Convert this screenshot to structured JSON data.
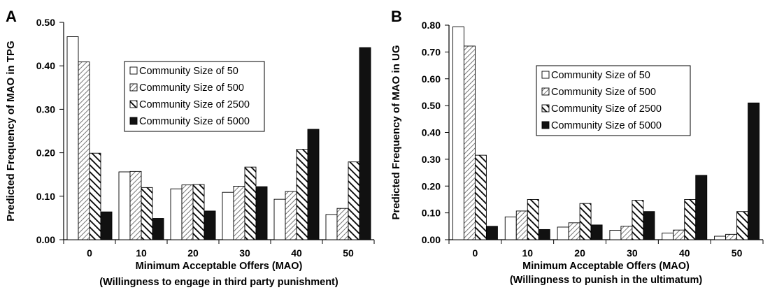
{
  "colors": {
    "axis": "#000000",
    "bar_stroke": "#000000",
    "fill_50": "#ffffff",
    "fill_5000": "#111111",
    "legend_border": "#000000"
  },
  "chart_data": [
    {
      "type": "bar",
      "panel_label": "A",
      "title": "",
      "ylabel": "Predicted Frequency of MAO in TPG",
      "xlabel": "Minimum Acceptable Offers (MAO)",
      "xlabel2": "(Willingness to engage in third party punishment)",
      "ylim": [
        0,
        0.5
      ],
      "yticks": [
        "0.00",
        "0.10",
        "0.20",
        "0.30",
        "0.40",
        "0.50"
      ],
      "categories": [
        "0",
        "10",
        "20",
        "30",
        "40",
        "50"
      ],
      "grid": false,
      "legend_position": "upper-center",
      "series": [
        {
          "name": "Community Size of 50",
          "pattern": "white",
          "values": [
            0.467,
            0.156,
            0.117,
            0.109,
            0.093,
            0.058
          ]
        },
        {
          "name": "Community Size of 500",
          "pattern": "hatch-light",
          "values": [
            0.409,
            0.157,
            0.126,
            0.123,
            0.111,
            0.072
          ]
        },
        {
          "name": "Community Size of 2500",
          "pattern": "hatch-dark",
          "values": [
            0.199,
            0.12,
            0.127,
            0.167,
            0.208,
            0.179
          ]
        },
        {
          "name": "Community Size of 5000",
          "pattern": "black",
          "values": [
            0.064,
            0.049,
            0.066,
            0.122,
            0.254,
            0.442
          ]
        }
      ]
    },
    {
      "type": "bar",
      "panel_label": "B",
      "title": "",
      "ylabel": "Predicted Frequency of MAO in UG",
      "xlabel": "Minimum Acceptable Offers (MAO)",
      "xlabel2": "(Willingness to punish in the ultimatum)",
      "ylim": [
        0,
        0.8
      ],
      "yticks": [
        "0.00",
        "0.10",
        "0.20",
        "0.30",
        "0.40",
        "0.50",
        "0.60",
        "0.70",
        "0.80"
      ],
      "categories": [
        "0",
        "10",
        "20",
        "30",
        "40",
        "50"
      ],
      "grid": false,
      "legend_position": "upper-center",
      "series": [
        {
          "name": "Community Size of 50",
          "pattern": "white",
          "values": [
            0.794,
            0.085,
            0.047,
            0.035,
            0.025,
            0.013
          ]
        },
        {
          "name": "Community Size of 500",
          "pattern": "hatch-light",
          "values": [
            0.722,
            0.107,
            0.063,
            0.05,
            0.036,
            0.02
          ]
        },
        {
          "name": "Community Size of 2500",
          "pattern": "hatch-dark",
          "values": [
            0.315,
            0.15,
            0.135,
            0.147,
            0.15,
            0.105
          ]
        },
        {
          "name": "Community Size of 5000",
          "pattern": "black",
          "values": [
            0.05,
            0.038,
            0.055,
            0.105,
            0.24,
            0.51
          ]
        }
      ]
    }
  ]
}
